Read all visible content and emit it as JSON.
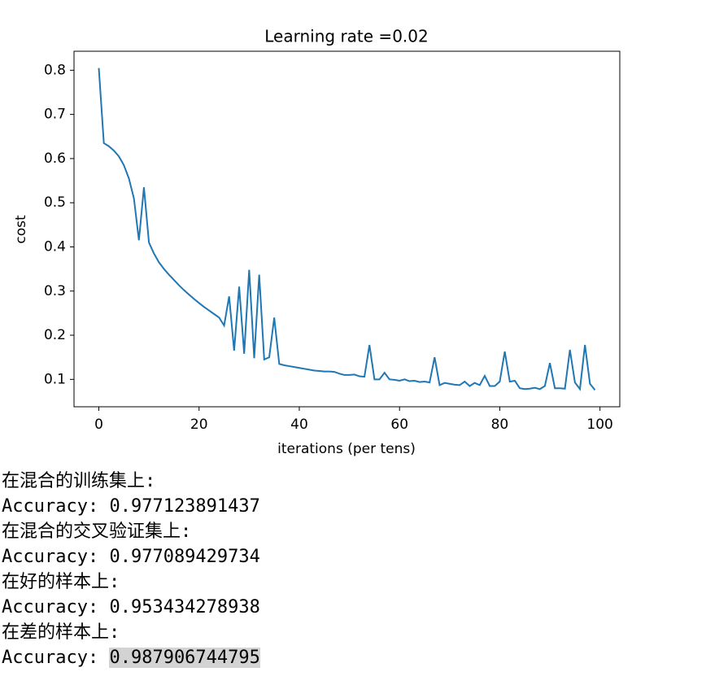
{
  "chart_data": {
    "type": "line",
    "title": "Learning rate =0.02",
    "xlabel": "iterations (per tens)",
    "ylabel": "cost",
    "x": [
      0,
      1,
      2,
      3,
      4,
      5,
      6,
      7,
      8,
      9,
      10,
      11,
      12,
      13,
      14,
      15,
      16,
      17,
      18,
      19,
      20,
      21,
      22,
      23,
      24,
      25,
      26,
      27,
      28,
      29,
      30,
      31,
      32,
      33,
      34,
      35,
      36,
      37,
      38,
      39,
      40,
      41,
      42,
      43,
      44,
      45,
      46,
      47,
      48,
      49,
      50,
      51,
      52,
      53,
      54,
      55,
      56,
      57,
      58,
      59,
      60,
      61,
      62,
      63,
      64,
      65,
      66,
      67,
      68,
      69,
      70,
      71,
      72,
      73,
      74,
      75,
      76,
      77,
      78,
      79,
      80,
      81,
      82,
      83,
      84,
      85,
      86,
      87,
      88,
      89,
      90,
      91,
      92,
      93,
      94,
      95,
      96,
      97,
      98,
      99
    ],
    "series": [
      {
        "color": "#1f77b4",
        "values": [
          0.805,
          0.635,
          0.628,
          0.618,
          0.605,
          0.585,
          0.555,
          0.51,
          0.415,
          0.535,
          0.41,
          0.385,
          0.365,
          0.35,
          0.337,
          0.325,
          0.313,
          0.302,
          0.292,
          0.282,
          0.273,
          0.264,
          0.256,
          0.248,
          0.24,
          0.222,
          0.288,
          0.165,
          0.31,
          0.158,
          0.348,
          0.148,
          0.337,
          0.145,
          0.15,
          0.24,
          0.135,
          0.132,
          0.13,
          0.128,
          0.126,
          0.124,
          0.122,
          0.12,
          0.119,
          0.118,
          0.118,
          0.117,
          0.113,
          0.11,
          0.11,
          0.111,
          0.107,
          0.106,
          0.178,
          0.1,
          0.1,
          0.115,
          0.1,
          0.099,
          0.097,
          0.1,
          0.096,
          0.097,
          0.094,
          0.095,
          0.093,
          0.15,
          0.087,
          0.092,
          0.09,
          0.088,
          0.087,
          0.095,
          0.085,
          0.092,
          0.087,
          0.108,
          0.085,
          0.085,
          0.095,
          0.163,
          0.095,
          0.097,
          0.08,
          0.078,
          0.079,
          0.081,
          0.078,
          0.085,
          0.137,
          0.08,
          0.08,
          0.079,
          0.167,
          0.093,
          0.078,
          0.178,
          0.09,
          0.076
        ]
      }
    ],
    "xlim": [
      -4.95,
      103.95
    ],
    "ylim": [
      0.038,
      0.843
    ],
    "xticks": [
      0,
      20,
      40,
      60,
      80,
      100
    ],
    "yticks": [
      0.1,
      0.2,
      0.3,
      0.4,
      0.5,
      0.6,
      0.7,
      0.8
    ],
    "grid": false
  },
  "output": [
    {
      "text": "在混合的训练集上:"
    },
    {
      "label": "Accuracy:",
      "value": "0.977123891437"
    },
    {
      "text": "在混合的交叉验证集上:"
    },
    {
      "label": "Accuracy:",
      "value": "0.977089429734"
    },
    {
      "text": "在好的样本上:"
    },
    {
      "label": "Accuracy:",
      "value": "0.953434278938"
    },
    {
      "text": "在差的样本上:"
    },
    {
      "label": "Accuracy:",
      "value": "0.987906744795",
      "selected": true
    }
  ]
}
